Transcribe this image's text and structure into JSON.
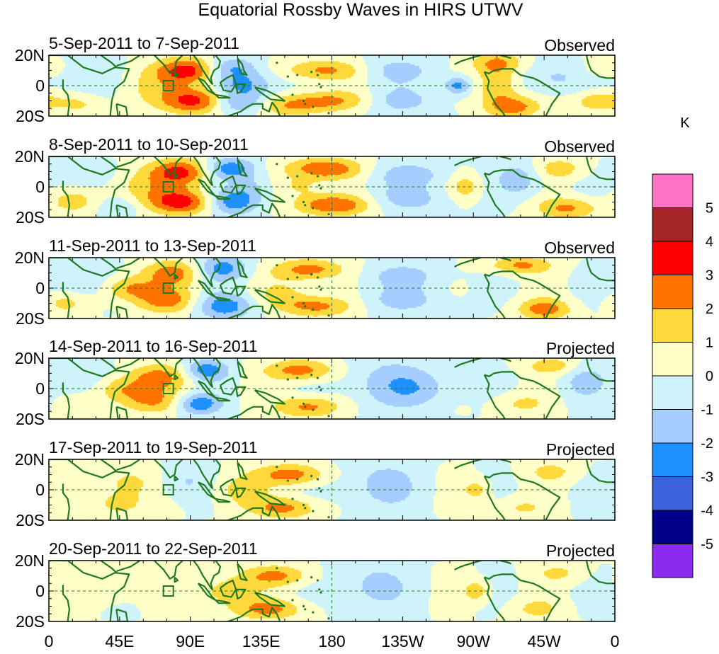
{
  "chart_data": {
    "type": "heatmap",
    "title": "Equatorial Rossby Waves in HIRS UTWV",
    "colorbar_unit": "K",
    "x_ticks": [
      "0",
      "45E",
      "90E",
      "135E",
      "180",
      "135W",
      "90W",
      "45W",
      "0"
    ],
    "x_tick_values": [
      0,
      45,
      90,
      135,
      180,
      225,
      270,
      315,
      360
    ],
    "y_ticks": [
      "20N",
      "0",
      "20S"
    ],
    "y_tick_values": [
      20,
      0,
      -20
    ],
    "xlim": [
      0,
      360
    ],
    "ylim": [
      -20,
      20
    ],
    "levels": [
      -5,
      -4,
      -3,
      -2,
      -1,
      0,
      1,
      2,
      3,
      4,
      5
    ],
    "level_labels": [
      "5",
      "4",
      "3",
      "2",
      "1",
      "0",
      "-1",
      "-2",
      "-3",
      "-4",
      "-5"
    ],
    "colors": [
      "#8b2bf0",
      "#00008b",
      "#3d63dc",
      "#1f90ff",
      "#a5cdfd",
      "#cff3fb",
      "#ffffc8",
      "#ffd93c",
      "#ff7301",
      "#ff0000",
      "#a52526",
      "#ff71c4"
    ],
    "coast_color": "#1f7a1f",
    "marker": {
      "lon": 76,
      "lat": 0
    },
    "panels": [
      {
        "date_range": "5-Sep-2011 to 7-Sep-2011",
        "status": "Observed"
      },
      {
        "date_range": "8-Sep-2011 to 10-Sep-2011",
        "status": "Observed"
      },
      {
        "date_range": "11-Sep-2011 to 13-Sep-2011",
        "status": "Observed"
      },
      {
        "date_range": "14-Sep-2011 to 16-Sep-2011",
        "status": "Projected"
      },
      {
        "date_range": "17-Sep-2011 to 19-Sep-2011",
        "status": "Projected"
      },
      {
        "date_range": "20-Sep-2011 to 22-Sep-2011",
        "status": "Projected"
      }
    ],
    "anomalies": [
      [
        {
          "lon": 90,
          "lat": 10,
          "amp": 3.5,
          "wx": 14,
          "wy": 6
        },
        {
          "lon": 95,
          "lat": -10,
          "amp": 3.6,
          "wx": 15,
          "wy": 6
        },
        {
          "lon": 60,
          "lat": 0,
          "amp": 1.2,
          "wx": 18,
          "wy": 10
        },
        {
          "lon": 125,
          "lat": 0,
          "amp": -2.4,
          "wx": 14,
          "wy": 7
        },
        {
          "lon": 115,
          "lat": 12,
          "amp": -2.0,
          "wx": 12,
          "wy": 5
        },
        {
          "lon": 120,
          "lat": -12,
          "amp": -2.2,
          "wx": 13,
          "wy": 5
        },
        {
          "lon": 175,
          "lat": 10,
          "amp": 2.4,
          "wx": 18,
          "wy": 5
        },
        {
          "lon": 178,
          "lat": -10,
          "amp": 2.4,
          "wx": 20,
          "wy": 5
        },
        {
          "lon": 150,
          "lat": -14,
          "amp": 1.5,
          "wx": 15,
          "wy": 5
        },
        {
          "lon": 220,
          "lat": 10,
          "amp": -1.3,
          "wx": 20,
          "wy": 6
        },
        {
          "lon": 220,
          "lat": -10,
          "amp": -1.4,
          "wx": 20,
          "wy": 6
        },
        {
          "lon": 260,
          "lat": 0,
          "amp": -2.6,
          "wx": 6,
          "wy": 4
        },
        {
          "lon": 285,
          "lat": 0,
          "amp": 2.2,
          "wx": 9,
          "wy": 9
        },
        {
          "lon": 285,
          "lat": 15,
          "amp": 2.0,
          "wx": 12,
          "wy": 5
        },
        {
          "lon": 295,
          "lat": -14,
          "amp": 2.5,
          "wx": 12,
          "wy": 5
        },
        {
          "lon": 320,
          "lat": 5,
          "amp": -1.3,
          "wx": 14,
          "wy": 8
        },
        {
          "lon": 350,
          "lat": -10,
          "amp": 2.0,
          "wx": 12,
          "wy": 5
        },
        {
          "lon": 355,
          "lat": 12,
          "amp": 1.2,
          "wx": 10,
          "wy": 5
        },
        {
          "lon": 25,
          "lat": 5,
          "amp": -1.2,
          "wx": 16,
          "wy": 10
        },
        {
          "lon": 20,
          "lat": -12,
          "amp": 1.1,
          "wx": 10,
          "wy": 5
        }
      ],
      [
        {
          "lon": 85,
          "lat": 10,
          "amp": 3.2,
          "wx": 14,
          "wy": 6
        },
        {
          "lon": 85,
          "lat": -10,
          "amp": 3.4,
          "wx": 14,
          "wy": 6
        },
        {
          "lon": 58,
          "lat": 0,
          "amp": 1.4,
          "wx": 16,
          "wy": 9
        },
        {
          "lon": 115,
          "lat": 12,
          "amp": -2.8,
          "wx": 12,
          "wy": 5
        },
        {
          "lon": 118,
          "lat": -10,
          "amp": -2.7,
          "wx": 12,
          "wy": 6
        },
        {
          "lon": 130,
          "lat": 0,
          "amp": -1.2,
          "wx": 10,
          "wy": 6
        },
        {
          "lon": 175,
          "lat": 12,
          "amp": 3.0,
          "wx": 17,
          "wy": 5
        },
        {
          "lon": 180,
          "lat": -12,
          "amp": 3.0,
          "wx": 17,
          "wy": 5
        },
        {
          "lon": 160,
          "lat": 0,
          "amp": 1.2,
          "wx": 12,
          "wy": 5
        },
        {
          "lon": 230,
          "lat": 8,
          "amp": -1.4,
          "wx": 20,
          "wy": 6
        },
        {
          "lon": 230,
          "lat": -8,
          "amp": -1.3,
          "wx": 20,
          "wy": 6
        },
        {
          "lon": 265,
          "lat": 0,
          "amp": 1.6,
          "wx": 7,
          "wy": 6
        },
        {
          "lon": 300,
          "lat": 5,
          "amp": -1.6,
          "wx": 10,
          "wy": 8
        },
        {
          "lon": 325,
          "lat": 12,
          "amp": 1.5,
          "wx": 12,
          "wy": 5
        },
        {
          "lon": 330,
          "lat": -14,
          "amp": 2.2,
          "wx": 14,
          "wy": 5
        },
        {
          "lon": 20,
          "lat": 8,
          "amp": -1.1,
          "wx": 14,
          "wy": 6
        },
        {
          "lon": 15,
          "lat": -10,
          "amp": 1.3,
          "wx": 10,
          "wy": 5
        },
        {
          "lon": 45,
          "lat": -14,
          "amp": -1.2,
          "wx": 8,
          "wy": 5
        }
      ],
      [
        {
          "lon": 80,
          "lat": 10,
          "amp": 2.4,
          "wx": 14,
          "wy": 6
        },
        {
          "lon": 75,
          "lat": -8,
          "amp": 2.4,
          "wx": 14,
          "wy": 6
        },
        {
          "lon": 50,
          "lat": 0,
          "amp": 2.2,
          "wx": 12,
          "wy": 6
        },
        {
          "lon": 110,
          "lat": 13,
          "amp": -2.5,
          "wx": 12,
          "wy": 6
        },
        {
          "lon": 112,
          "lat": -12,
          "amp": -2.6,
          "wx": 13,
          "wy": 6
        },
        {
          "lon": 165,
          "lat": 12,
          "amp": 2.6,
          "wx": 16,
          "wy": 5
        },
        {
          "lon": 170,
          "lat": -12,
          "amp": 2.4,
          "wx": 16,
          "wy": 5
        },
        {
          "lon": 150,
          "lat": -4,
          "amp": 1.2,
          "wx": 12,
          "wy": 6
        },
        {
          "lon": 225,
          "lat": 8,
          "amp": -1.3,
          "wx": 20,
          "wy": 6
        },
        {
          "lon": 225,
          "lat": -8,
          "amp": -1.3,
          "wx": 20,
          "wy": 6
        },
        {
          "lon": 300,
          "lat": 15,
          "amp": 2.2,
          "wx": 14,
          "wy": 4
        },
        {
          "lon": 315,
          "lat": -14,
          "amp": 2.5,
          "wx": 12,
          "wy": 5
        },
        {
          "lon": 20,
          "lat": 5,
          "amp": -1.2,
          "wx": 14,
          "wy": 8
        },
        {
          "lon": 10,
          "lat": -10,
          "amp": 1.2,
          "wx": 10,
          "wy": 5
        }
      ],
      [
        {
          "lon": 70,
          "lat": 8,
          "amp": 2.2,
          "wx": 15,
          "wy": 6
        },
        {
          "lon": 65,
          "lat": -8,
          "amp": 2.0,
          "wx": 15,
          "wy": 6
        },
        {
          "lon": 45,
          "lat": 0,
          "amp": 1.8,
          "wx": 12,
          "wy": 6
        },
        {
          "lon": 100,
          "lat": 12,
          "amp": -2.7,
          "wx": 10,
          "wy": 5
        },
        {
          "lon": 95,
          "lat": -10,
          "amp": -2.8,
          "wx": 10,
          "wy": 5
        },
        {
          "lon": 160,
          "lat": 12,
          "amp": 2.6,
          "wx": 15,
          "wy": 5
        },
        {
          "lon": 165,
          "lat": -12,
          "amp": 2.4,
          "wx": 15,
          "wy": 5
        },
        {
          "lon": 215,
          "lat": 3,
          "amp": -1.5,
          "wx": 20,
          "wy": 12
        },
        {
          "lon": 240,
          "lat": 0,
          "amp": -1.0,
          "wx": 15,
          "wy": 8
        },
        {
          "lon": 320,
          "lat": 15,
          "amp": 1.6,
          "wx": 12,
          "wy": 4
        },
        {
          "lon": 300,
          "lat": -10,
          "amp": 1.2,
          "wx": 12,
          "wy": 5
        },
        {
          "lon": 340,
          "lat": 5,
          "amp": -1.3,
          "wx": 10,
          "wy": 8
        },
        {
          "lon": 20,
          "lat": 6,
          "amp": -1.1,
          "wx": 14,
          "wy": 7
        }
      ],
      [
        {
          "lon": 50,
          "lat": 5,
          "amp": 1.4,
          "wx": 14,
          "wy": 8
        },
        {
          "lon": 45,
          "lat": -10,
          "amp": 1.3,
          "wx": 12,
          "wy": 6
        },
        {
          "lon": 85,
          "lat": 5,
          "amp": -1.2,
          "wx": 12,
          "wy": 8
        },
        {
          "lon": 120,
          "lat": 0,
          "amp": 1.4,
          "wx": 12,
          "wy": 8
        },
        {
          "lon": 155,
          "lat": 10,
          "amp": 2.6,
          "wx": 15,
          "wy": 5
        },
        {
          "lon": 150,
          "lat": -12,
          "amp": 2.3,
          "wx": 15,
          "wy": 5
        },
        {
          "lon": 210,
          "lat": 3,
          "amp": -1.4,
          "wx": 18,
          "wy": 12
        },
        {
          "lon": 272,
          "lat": 0,
          "amp": 1.5,
          "wx": 6,
          "wy": 5
        },
        {
          "lon": 320,
          "lat": 12,
          "amp": 1.2,
          "wx": 12,
          "wy": 5
        },
        {
          "lon": 300,
          "lat": -12,
          "amp": 1.1,
          "wx": 12,
          "wy": 5
        }
      ],
      [
        {
          "lon": 40,
          "lat": 5,
          "amp": 1.2,
          "wx": 14,
          "wy": 8
        },
        {
          "lon": 110,
          "lat": 0,
          "amp": 1.5,
          "wx": 14,
          "wy": 8
        },
        {
          "lon": 145,
          "lat": 10,
          "amp": 2.2,
          "wx": 15,
          "wy": 5
        },
        {
          "lon": 140,
          "lat": -12,
          "amp": 2.2,
          "wx": 16,
          "wy": 5
        },
        {
          "lon": 205,
          "lat": 3,
          "amp": -1.4,
          "wx": 16,
          "wy": 12
        },
        {
          "lon": 272,
          "lat": 0,
          "amp": 1.7,
          "wx": 6,
          "wy": 5
        },
        {
          "lon": 325,
          "lat": 12,
          "amp": 1.1,
          "wx": 12,
          "wy": 5
        },
        {
          "lon": 310,
          "lat": -12,
          "amp": 1.2,
          "wx": 12,
          "wy": 5
        }
      ]
    ]
  }
}
